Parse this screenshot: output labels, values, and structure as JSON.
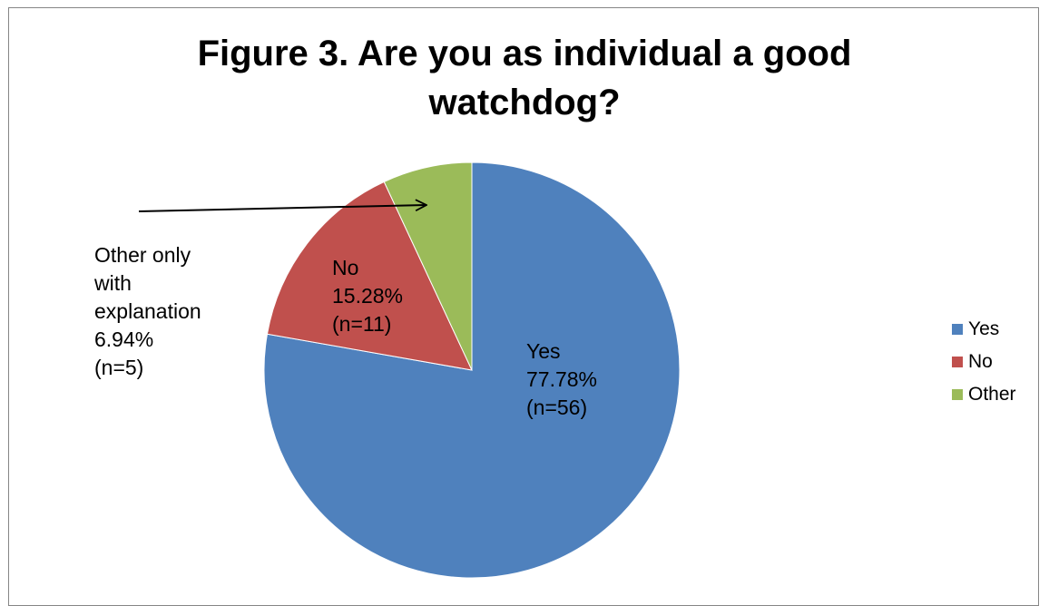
{
  "chart_data": {
    "type": "pie",
    "title": "Figure 3. Are you as individual a good watchdog?",
    "title_lines": [
      "Figure 3. Are you as individual a good",
      "watchdog?"
    ],
    "slices": [
      {
        "name": "Yes",
        "value": 77.78,
        "count": 56,
        "color": "#4F81BD",
        "label_lines": [
          "Yes",
          "77.78%",
          "(n=56)"
        ]
      },
      {
        "name": "No",
        "value": 15.28,
        "count": 11,
        "color": "#C0504D",
        "label_lines": [
          "No",
          "15.28%",
          "(n=11)"
        ]
      },
      {
        "name": "Other",
        "value": 6.94,
        "count": 5,
        "color": "#9BBB59",
        "label_lines": [
          "Other only",
          "with",
          "explanation",
          "6.94%",
          "(n=5)"
        ]
      }
    ],
    "start_angle": "12 o'clock",
    "direction": "clockwise",
    "legend": {
      "placement": "right",
      "entries": [
        "Yes",
        "No",
        "Other"
      ]
    },
    "annotation": "arrow from the Other label pointing to the Other slice"
  }
}
